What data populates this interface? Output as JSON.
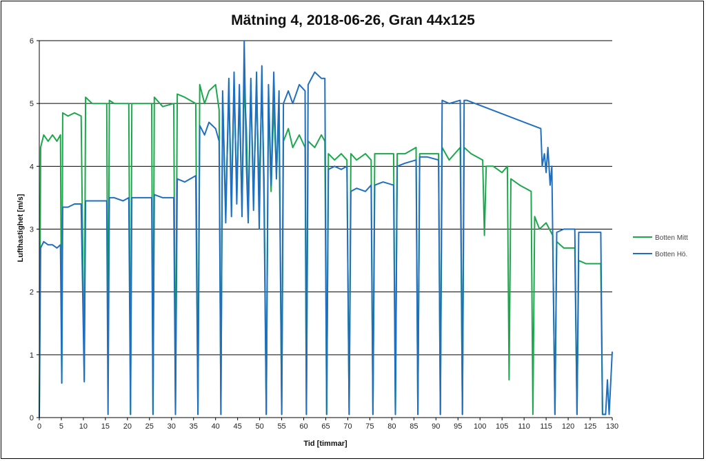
{
  "chart_data": {
    "type": "line",
    "title": "Mätning 4, 2018-06-26, Gran 44x125",
    "xlabel": "Tid [timmar]",
    "ylabel": "Lufthastighet [m/s]",
    "xlim": [
      0,
      130
    ],
    "ylim": [
      0,
      6
    ],
    "xticks": [
      0,
      5,
      10,
      15,
      20,
      25,
      30,
      35,
      40,
      45,
      50,
      55,
      60,
      65,
      70,
      75,
      80,
      85,
      90,
      95,
      100,
      105,
      110,
      115,
      120,
      125,
      130
    ],
    "yticks": [
      0,
      1,
      2,
      3,
      4,
      5,
      6
    ],
    "grid": "horizontal major",
    "legend_position": "right",
    "series": [
      {
        "name": "Botten Mitt",
        "color": "#1BA84B",
        "points": [
          [
            0,
            0
          ],
          [
            0.3,
            4.3
          ],
          [
            1,
            4.5
          ],
          [
            2,
            4.4
          ],
          [
            3,
            4.5
          ],
          [
            4,
            4.4
          ],
          [
            4.8,
            4.5
          ],
          [
            5.1,
            0.55
          ],
          [
            5.3,
            4.85
          ],
          [
            6.5,
            4.8
          ],
          [
            8,
            4.85
          ],
          [
            9.5,
            4.8
          ],
          [
            10.2,
            0.6
          ],
          [
            10.5,
            5.1
          ],
          [
            12,
            5.0
          ],
          [
            14,
            5.0
          ],
          [
            15.3,
            5.0
          ],
          [
            15.6,
            0.6
          ],
          [
            15.9,
            5.05
          ],
          [
            17,
            5.0
          ],
          [
            19,
            5.0
          ],
          [
            20.3,
            5.0
          ],
          [
            20.7,
            0.05
          ],
          [
            21,
            5.0
          ],
          [
            23,
            5.0
          ],
          [
            25.5,
            5.0
          ],
          [
            25.8,
            0.05
          ],
          [
            26.1,
            5.1
          ],
          [
            28,
            4.95
          ],
          [
            30.5,
            5.0
          ],
          [
            30.9,
            0.05
          ],
          [
            31.3,
            5.15
          ],
          [
            33,
            5.1
          ],
          [
            35.5,
            5.0
          ],
          [
            36.0,
            0.05
          ],
          [
            36.4,
            5.3
          ],
          [
            37.5,
            5.0
          ],
          [
            38.5,
            5.2
          ],
          [
            40,
            5.3
          ],
          [
            40.8,
            4.9
          ],
          [
            41.2,
            0.05
          ],
          [
            41.6,
            5.1
          ],
          [
            42.3,
            3.3
          ],
          [
            43,
            5.2
          ],
          [
            43.6,
            3.5
          ],
          [
            44.2,
            5.3
          ],
          [
            44.8,
            3.6
          ],
          [
            45.4,
            5.1
          ],
          [
            46.0,
            3.3
          ],
          [
            46.5,
            5.3
          ],
          [
            47.0,
            4.6
          ],
          [
            47.4,
            3.2
          ],
          [
            48.0,
            5.3
          ],
          [
            48.6,
            3.5
          ],
          [
            49.3,
            5.2
          ],
          [
            49.9,
            3.6
          ],
          [
            50.5,
            5.3
          ],
          [
            51.0,
            3.8
          ],
          [
            51.5,
            0.05
          ],
          [
            52.0,
            5.1
          ],
          [
            52.6,
            3.6
          ],
          [
            53.2,
            5.0
          ],
          [
            53.8,
            3.9
          ],
          [
            54.4,
            4.8
          ],
          [
            55.0,
            0.05
          ],
          [
            55.4,
            4.4
          ],
          [
            56.5,
            4.6
          ],
          [
            57.5,
            4.3
          ],
          [
            59,
            4.5
          ],
          [
            60.3,
            4.3
          ],
          [
            60.6,
            0.05
          ],
          [
            61,
            4.4
          ],
          [
            62.5,
            4.3
          ],
          [
            64,
            4.5
          ],
          [
            64.8,
            4.4
          ],
          [
            65.2,
            0.05
          ],
          [
            65.6,
            4.2
          ],
          [
            67,
            4.1
          ],
          [
            68.5,
            4.2
          ],
          [
            69.8,
            4.1
          ],
          [
            70.3,
            0.05
          ],
          [
            70.7,
            4.2
          ],
          [
            72,
            4.1
          ],
          [
            74,
            4.2
          ],
          [
            75.3,
            4.1
          ],
          [
            75.7,
            0.05
          ],
          [
            76.1,
            4.2
          ],
          [
            78,
            4.2
          ],
          [
            80.4,
            4.2
          ],
          [
            80.8,
            0.05
          ],
          [
            81.2,
            4.2
          ],
          [
            83,
            4.2
          ],
          [
            85.5,
            4.3
          ],
          [
            85.9,
            0.05
          ],
          [
            86.3,
            4.2
          ],
          [
            88,
            4.2
          ],
          [
            90.6,
            4.2
          ],
          [
            91.0,
            0.05
          ],
          [
            91.4,
            4.3
          ],
          [
            93,
            4.1
          ],
          [
            95.5,
            4.3
          ],
          [
            96.0,
            0.05
          ],
          [
            96.4,
            4.3
          ],
          [
            98,
            4.2
          ],
          [
            100.6,
            4.1
          ],
          [
            101.0,
            2.9
          ],
          [
            101.4,
            4.0
          ],
          [
            103,
            4.0
          ],
          [
            105,
            3.9
          ],
          [
            106.2,
            4.0
          ],
          [
            106.6,
            0.6
          ],
          [
            107.0,
            3.8
          ],
          [
            109,
            3.7
          ],
          [
            111.6,
            3.6
          ],
          [
            112.0,
            0.05
          ],
          [
            112.4,
            3.2
          ],
          [
            113.5,
            3.0
          ],
          [
            115,
            3.1
          ],
          [
            116.5,
            2.9
          ],
          [
            117.0,
            0.05
          ],
          [
            117.4,
            2.8
          ],
          [
            119,
            2.7
          ],
          [
            121.5,
            2.7
          ],
          [
            122.0,
            0.05
          ],
          [
            122.4,
            2.5
          ],
          [
            124,
            2.45
          ],
          [
            126,
            2.45
          ],
          [
            127.4,
            2.45
          ],
          [
            127.8,
            0.05
          ],
          [
            128.5,
            0.05
          ]
        ]
      },
      {
        "name": "Botten Hö.",
        "color": "#1F6FC0",
        "points": [
          [
            0,
            0
          ],
          [
            0.3,
            2.7
          ],
          [
            1,
            2.8
          ],
          [
            2,
            2.75
          ],
          [
            3,
            2.75
          ],
          [
            4,
            2.7
          ],
          [
            4.8,
            2.75
          ],
          [
            5.1,
            0.55
          ],
          [
            5.3,
            3.35
          ],
          [
            6.5,
            3.35
          ],
          [
            8,
            3.4
          ],
          [
            9.5,
            3.4
          ],
          [
            10.2,
            0.57
          ],
          [
            10.5,
            3.45
          ],
          [
            12,
            3.45
          ],
          [
            14,
            3.45
          ],
          [
            15.3,
            3.45
          ],
          [
            15.6,
            0.05
          ],
          [
            15.9,
            3.5
          ],
          [
            17,
            3.5
          ],
          [
            19,
            3.45
          ],
          [
            20.3,
            3.5
          ],
          [
            20.7,
            0.05
          ],
          [
            21,
            3.5
          ],
          [
            23,
            3.5
          ],
          [
            25.5,
            3.5
          ],
          [
            25.8,
            0.05
          ],
          [
            26.1,
            3.55
          ],
          [
            28,
            3.5
          ],
          [
            30.5,
            3.5
          ],
          [
            30.9,
            0.05
          ],
          [
            31.3,
            3.8
          ],
          [
            33,
            3.75
          ],
          [
            35.5,
            3.85
          ],
          [
            36.0,
            0.05
          ],
          [
            36.4,
            4.65
          ],
          [
            37.5,
            4.5
          ],
          [
            38.5,
            4.7
          ],
          [
            40,
            4.6
          ],
          [
            40.8,
            4.4
          ],
          [
            41.2,
            0.05
          ],
          [
            41.6,
            5.2
          ],
          [
            42.3,
            3.1
          ],
          [
            43,
            5.4
          ],
          [
            43.6,
            3.2
          ],
          [
            44.2,
            5.5
          ],
          [
            44.8,
            3.4
          ],
          [
            45.4,
            5.3
          ],
          [
            46.0,
            3.2
          ],
          [
            46.5,
            6.0
          ],
          [
            47.0,
            4.0
          ],
          [
            47.4,
            3.1
          ],
          [
            48.0,
            5.4
          ],
          [
            48.6,
            3.3
          ],
          [
            49.3,
            5.5
          ],
          [
            49.9,
            3.0
          ],
          [
            50.5,
            5.6
          ],
          [
            51.0,
            3.4
          ],
          [
            51.5,
            0.05
          ],
          [
            52.0,
            5.3
          ],
          [
            52.6,
            3.7
          ],
          [
            53.2,
            5.5
          ],
          [
            53.8,
            3.8
          ],
          [
            54.4,
            5.2
          ],
          [
            55.0,
            0.05
          ],
          [
            55.4,
            5.0
          ],
          [
            56.5,
            5.2
          ],
          [
            57.5,
            5.0
          ],
          [
            59,
            5.3
          ],
          [
            60.3,
            5.2
          ],
          [
            60.6,
            0.05
          ],
          [
            61,
            5.3
          ],
          [
            62.5,
            5.5
          ],
          [
            64,
            5.4
          ],
          [
            64.8,
            5.4
          ],
          [
            65.2,
            0.05
          ],
          [
            65.6,
            3.95
          ],
          [
            67,
            4.0
          ],
          [
            68.5,
            3.95
          ],
          [
            69.8,
            4.0
          ],
          [
            70.3,
            0.05
          ],
          [
            70.7,
            3.6
          ],
          [
            72,
            3.65
          ],
          [
            74,
            3.6
          ],
          [
            75.3,
            3.7
          ],
          [
            75.7,
            0.05
          ],
          [
            76.1,
            3.7
          ],
          [
            78,
            3.75
          ],
          [
            80.4,
            3.7
          ],
          [
            80.8,
            0.05
          ],
          [
            81.2,
            4.0
          ],
          [
            83,
            4.05
          ],
          [
            85.5,
            4.1
          ],
          [
            85.9,
            0.05
          ],
          [
            86.3,
            4.15
          ],
          [
            88,
            4.15
          ],
          [
            90.6,
            4.1
          ],
          [
            91.0,
            0.05
          ],
          [
            91.4,
            5.05
          ],
          [
            93,
            5.0
          ],
          [
            95.5,
            5.05
          ],
          [
            96.0,
            0.05
          ],
          [
            96.4,
            5.05
          ],
          [
            97,
            5.05
          ],
          [
            113.8,
            4.6
          ],
          [
            114.1,
            4.0
          ],
          [
            114.6,
            4.2
          ],
          [
            115.0,
            3.9
          ],
          [
            115.4,
            4.3
          ],
          [
            115.9,
            3.7
          ],
          [
            116.3,
            4.0
          ],
          [
            117.0,
            0.05
          ],
          [
            117.4,
            2.95
          ],
          [
            119,
            3.0
          ],
          [
            121.5,
            3.0
          ],
          [
            122.0,
            0.05
          ],
          [
            122.4,
            2.95
          ],
          [
            124,
            2.95
          ],
          [
            126,
            2.95
          ],
          [
            127.4,
            2.95
          ],
          [
            127.8,
            0.05
          ],
          [
            128.5,
            0.05
          ],
          [
            128.9,
            0.6
          ],
          [
            129.3,
            0.05
          ],
          [
            130,
            1.05
          ]
        ]
      }
    ]
  }
}
